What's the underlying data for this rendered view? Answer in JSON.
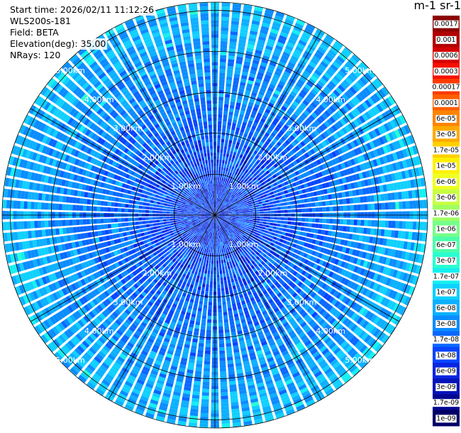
{
  "info": {
    "start_time": "Start time: 2026/02/11 11:12:26",
    "instrument": "WLS200s-181",
    "field": "Field: BETA",
    "elevation": "Elevation(deg): 35.00",
    "nrays": "NRays: 120"
  },
  "colorbar": {
    "title": "m-1 sr-1",
    "labels": [
      "0.0017",
      "0.001",
      "0.0006",
      "0.0003",
      "0.00017",
      "0.0001",
      "6e-05",
      "3e-05",
      "1.7e-05",
      "1e-05",
      "6e-06",
      "3e-06",
      "1.7e-06",
      "1e-06",
      "6e-07",
      "3e-07",
      "1.7e-07",
      "1e-07",
      "6e-08",
      "3e-08",
      "1.7e-08",
      "1e-08",
      "6e-09",
      "3e-09",
      "1.7e-09",
      "1e-09"
    ],
    "colors": [
      "#8b0000",
      "#b00000",
      "#d40000",
      "#f51000",
      "#ff3a00",
      "#ff5e00",
      "#ff8400",
      "#ffaa00",
      "#ffd000",
      "#fff000",
      "#f0ff20",
      "#c8ff40",
      "#9fff60",
      "#76ff88",
      "#4dffaa",
      "#29ffd0",
      "#14f0f0",
      "#0fd0ff",
      "#0cb0ff",
      "#0a8cff",
      "#0a68ff",
      "#0844ff",
      "#0626e0",
      "#0414b8",
      "#020890",
      "#000066"
    ]
  },
  "rings": {
    "labels": [
      "1.00km",
      "2.00km",
      "3.00km",
      "4.00km",
      "5.00km"
    ]
  },
  "chart_data": {
    "type": "heatmap",
    "projection": "polar (PPI scan)",
    "field": "BETA",
    "units": "m-1 sr-1",
    "elevation_deg": 35.0,
    "n_rays": 120,
    "range_rings_km": [
      1,
      2,
      3,
      4,
      5
    ],
    "max_range_km": 5.2,
    "color_scale": "log",
    "color_range": [
      1e-09,
      0.0017
    ],
    "dominant_values": "mostly 1e-08 to 1e-07; higher (~3e-08 to 1e-07) toward the outer ranges, lower (~1e-08 to 3e-08) near the center",
    "grid": true
  }
}
